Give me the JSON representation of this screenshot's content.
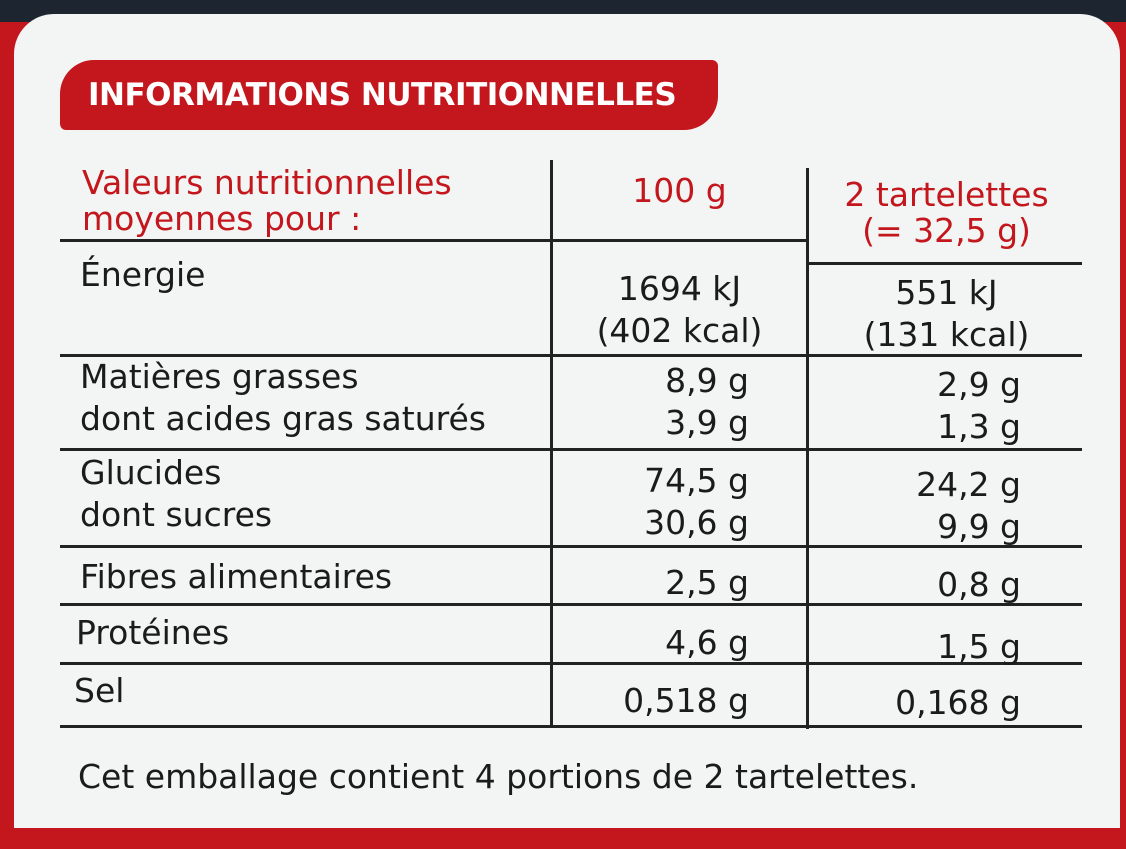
{
  "title": "INFORMATIONS NUTRITIONNELLES",
  "header": {
    "label_line1": "Valeurs nutritionnelles",
    "label_line2": "moyennes pour :",
    "col1": "100 g",
    "col2_line1": "2 tartelettes",
    "col2_line2": "(= 32,5 g)"
  },
  "rows": [
    {
      "label1": "Énergie",
      "label2": "",
      "v100a": "1694 kJ",
      "v100b": "(402 kcal)",
      "vpa": "551 kJ",
      "vpb": "(131 kcal)"
    },
    {
      "label1": "Matières grasses",
      "label2": "dont acides gras saturés",
      "v100a": "8,9 g",
      "v100b": "3,9 g",
      "vpa": "2,9 g",
      "vpb": "1,3 g"
    },
    {
      "label1": "Glucides",
      "label2": "dont sucres",
      "v100a": "74,5 g",
      "v100b": "30,6 g",
      "vpa": "24,2 g",
      "vpb": "9,9 g"
    },
    {
      "label1": "Fibres alimentaires",
      "v100a": "2,5 g",
      "vpa": "0,8 g"
    },
    {
      "label1": "Protéines",
      "v100a": "4,6 g",
      "vpa": "1,5 g"
    },
    {
      "label1": "Sel",
      "v100a": "0,518 g",
      "vpa": "0,168 g"
    }
  ],
  "footnote": "Cet emballage contient 4 portions de 2 tartelettes.",
  "colors": {
    "accent": "#c4161d",
    "background": "#f2f5f3",
    "text": "#1b1b1b"
  }
}
